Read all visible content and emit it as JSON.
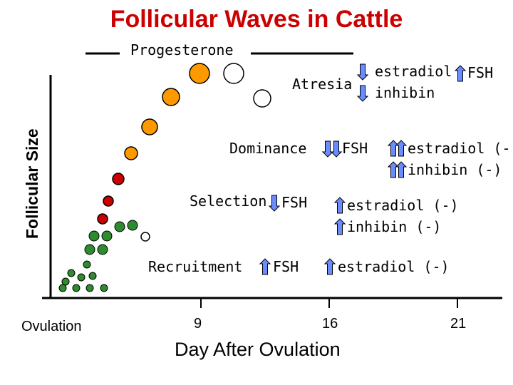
{
  "title": "Follicular Waves in Cattle",
  "y_axis_label": "Follicular Size",
  "x_axis_label": "Day After Ovulation",
  "x_ticks": [
    "Ovulation",
    "9",
    "16",
    "21"
  ],
  "progesterone_label": "Progesterone",
  "stages": {
    "atresia": "Atresia",
    "dominance": "Dominance",
    "selection": "Selection",
    "recruitment": "Recruitment"
  },
  "hormones": {
    "atresia_estradiol": "estradiol",
    "atresia_inhibin": "inhibin",
    "atresia_fsh": "FSH",
    "dominance_fsh": "FSH",
    "dominance_estradiol": "estradiol (-)",
    "dominance_inhibin": "inhibin (-)",
    "selection_fsh": "FSH",
    "selection_estradiol": "estradiol (-)",
    "selection_inhibin": "inhibin (-)",
    "recruitment_fsh": "FSH",
    "recruitment_estradiol": "estradiol (-)"
  },
  "colors": {
    "title": "#cc0000",
    "arrow_fill": "#6b8cff",
    "small_follicle": "#2e8b2e",
    "selected_follicle": "#cc0000",
    "dominant_follicle": "#ff9900",
    "atretic_follicle": "#ffffff"
  }
}
